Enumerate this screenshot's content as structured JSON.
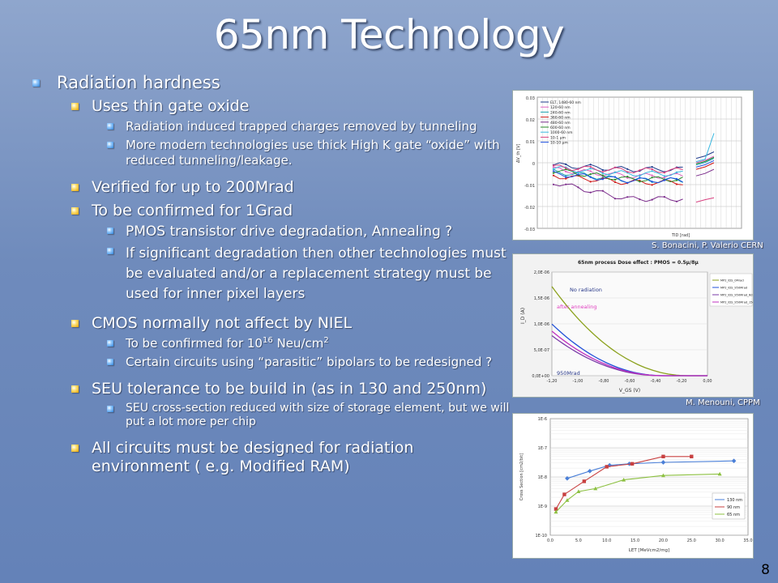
{
  "slide": {
    "title": "65nm Technology",
    "page_number": "8",
    "bullets": {
      "rad": "Radiation hardness",
      "oxide": "Uses thin gate oxide",
      "tunnel": "Radiation induced trapped charges removed by tunneling",
      "highk": "More modern technologies use thick High K gate “oxide” with reduced tunneling/leakage.",
      "verified": "Verified for up to 200Mrad",
      "confirm": "To be confirmed for 1Grad",
      "pmos": "PMOS transistor drive degradation, Annealing ?",
      "sig": "If significant degradation then other technologies must be evaluated and/or a replacement strategy must be used for inner pixel layers",
      "niel": "CMOS normally not affect by NIEL",
      "neu_a": "To be confirmed for 10",
      "neu_exp": "16",
      "neu_b": " Neu/cm",
      "neu_exp2": "2",
      "para": "Certain circuits using “parasitic” bipolars to be redesigned ?",
      "seu": "SEU tolerance to be build in (as in 130 and 250nm)",
      "seu_cs": "SEU cross-section reduced with size of storage element, but we will put a lot more per chip",
      "allc": "All circuits must be designed for radiation environment ( e.g. Modified RAM)"
    },
    "credits": {
      "c1": "S. Bonacini, P. Valerio CERN",
      "c2": "M. Menouni, CPPM"
    }
  },
  "chart_data": [
    {
      "type": "line",
      "xlabel": "TID [rad]",
      "ylabel": "ΔV_th [V]",
      "ylim": [
        -0.03,
        0.03
      ],
      "yticks": [
        "0.03",
        "0.02",
        "0.01",
        "0",
        "-0.01",
        "-0.02",
        "-0.03"
      ],
      "legend": [
        "ELT, 1480-60 nm",
        "120-60 nm",
        "240-60 nm",
        "360-60 nm",
        "480-60 nm",
        "600-60 nm",
        "1000-60 nm",
        "10-1 μm",
        "10-10 μm"
      ],
      "colors": [
        "#1f3b8c",
        "#e060c0",
        "#18a0b0",
        "#d01818",
        "#7a2a8a",
        "#2a8a2a",
        "#3ab8e0",
        "#d84080",
        "#2050e0"
      ]
    },
    {
      "type": "line",
      "title": "65nm process Dose effect : PMOS = 0.5μ/8μ",
      "xlabel": "V_GS (V)",
      "ylabel": "I_D (A)",
      "x_ticks": [
        "-1,20",
        "-1,00",
        "-0,80",
        "-0,60",
        "-0,40",
        "-0,20",
        "0,00"
      ],
      "y_ticks": [
        "2,0E-06",
        "1,5E-06",
        "1,0E-06",
        "5,0E-07",
        "0,0E+00"
      ],
      "legend": [
        "MP2_IDS_0Mrad",
        "MP2_IDS_950Mrad",
        "MP2_IDS_950Mrad_6d",
        "MP2_IDS_950Mrad_15d"
      ],
      "annotations": [
        "No radiation",
        "after annealing",
        "950Mrad"
      ],
      "colors": [
        "#8ca21e",
        "#2050d8",
        "#7a3aa8",
        "#c030c0"
      ]
    },
    {
      "type": "line",
      "xlabel": "LET [MeVcm2/mg]",
      "ylabel": "Cross Section [cm2/bit]",
      "x_ticks": [
        "0.0",
        "5.0",
        "10.0",
        "15.0",
        "20.0",
        "25.0",
        "30.0",
        "35.0"
      ],
      "y_ticks": [
        "1E-6",
        "1E-7",
        "1E-8",
        "1E-9",
        "1E-10"
      ],
      "series": [
        {
          "name": "130 nm",
          "color": "#4a7fd8",
          "x": [
            3,
            7,
            10.5,
            14,
            20,
            32.5
          ],
          "y": [
            -8.05,
            -7.8,
            -7.6,
            -7.55,
            -7.5,
            -7.45
          ]
        },
        {
          "name": "90 nm",
          "color": "#c84040",
          "x": [
            1,
            2.5,
            6,
            10,
            14.5,
            20,
            25
          ],
          "y": [
            -9.1,
            -8.6,
            -8.15,
            -7.65,
            -7.55,
            -7.3,
            -7.3
          ]
        },
        {
          "name": "65 nm",
          "color": "#8cc040",
          "x": [
            1,
            3,
            5,
            8,
            13,
            20,
            30
          ],
          "y": [
            -9.2,
            -8.8,
            -8.5,
            -8.4,
            -8.1,
            -7.95,
            -7.9
          ]
        }
      ]
    }
  ]
}
